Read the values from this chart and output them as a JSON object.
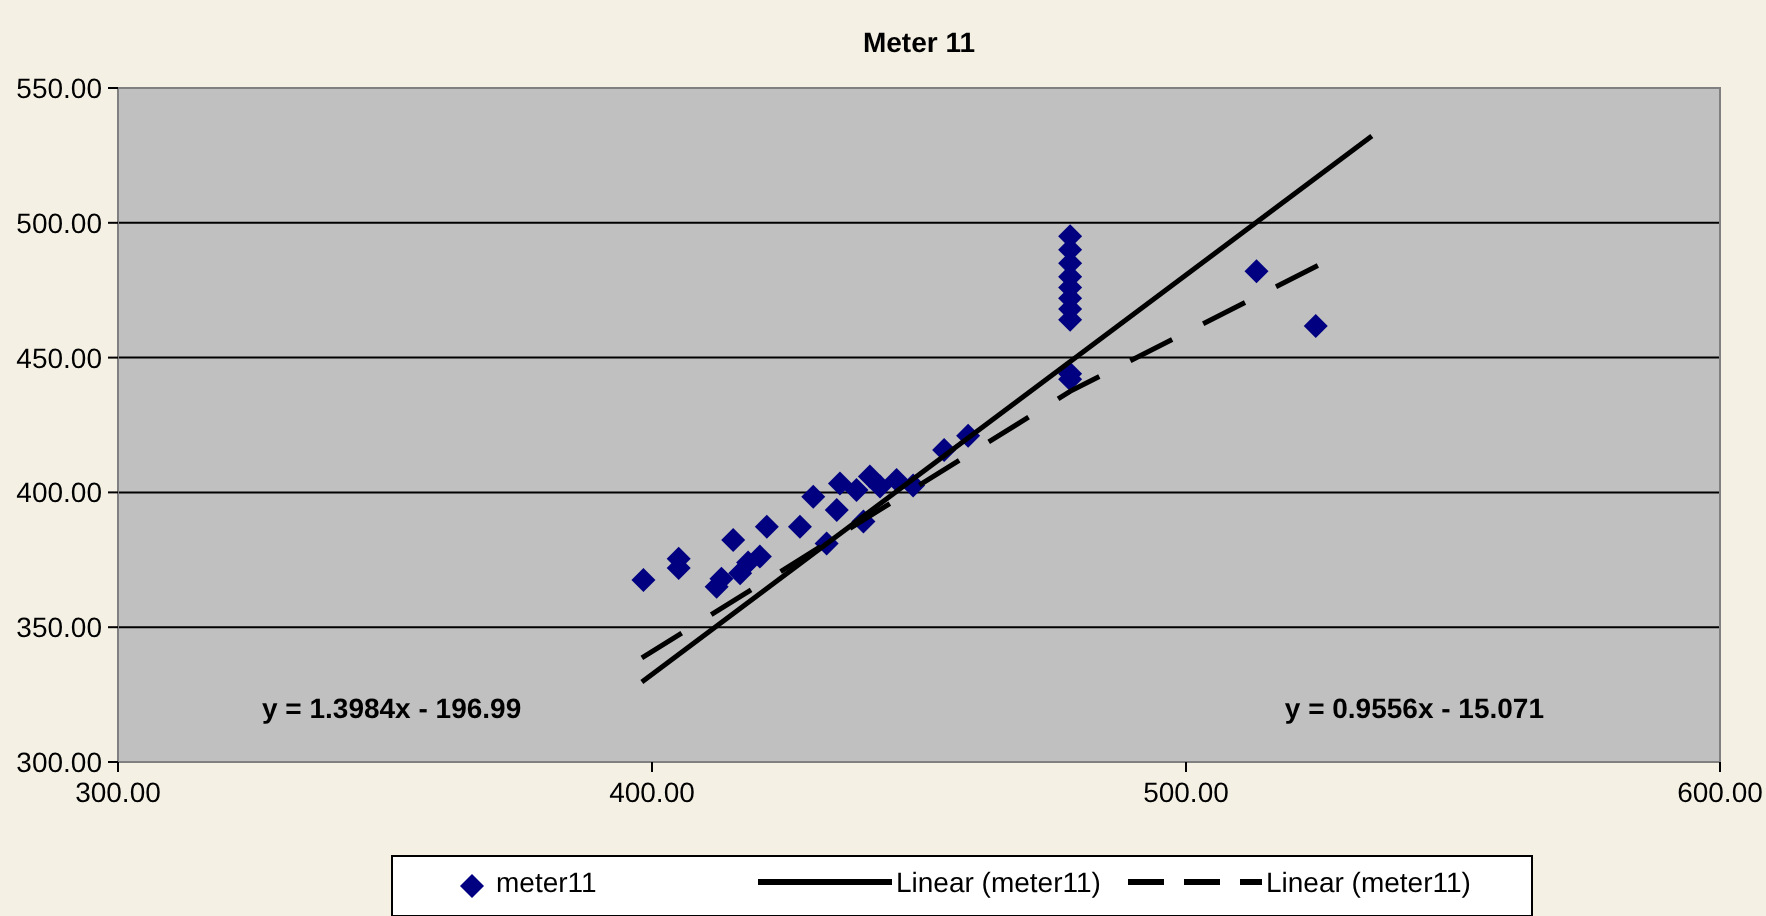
{
  "chart_data": {
    "type": "scatter",
    "title": "Meter 11",
    "xlim": [
      300,
      600
    ],
    "ylim": [
      300,
      550
    ],
    "xticks": [
      {
        "value": 300,
        "label": "300.00"
      },
      {
        "value": 400,
        "label": "400.00"
      },
      {
        "value": 500,
        "label": "500.00"
      },
      {
        "value": 600,
        "label": "600.00"
      }
    ],
    "yticks": [
      {
        "value": 300,
        "label": "300.00"
      },
      {
        "value": 350,
        "label": "350.00"
      },
      {
        "value": 400,
        "label": "400.00"
      },
      {
        "value": 450,
        "label": "450.00"
      },
      {
        "value": 500,
        "label": "500.00"
      },
      {
        "value": 550,
        "label": "550.00"
      }
    ],
    "grid": "y",
    "legend": "bottom",
    "annotations": [
      "y = 1.3984x - 196.99",
      "y = 0.9556x - 15.071"
    ],
    "series": [
      {
        "name": "meter11",
        "marker": "diamond",
        "color": "#000080",
        "x": [
          398.4,
          405,
          405,
          412.1,
          413,
          415.2,
          416.5,
          418,
          420.2,
          421.5,
          427.7,
          430.2,
          432.7,
          434.6,
          435.2,
          438.3,
          439.6,
          440.8,
          442.7,
          445.8,
          448.9,
          454.7,
          459.2,
          478.3,
          478.3,
          478.3,
          478.3,
          478.3,
          478.3,
          478.3,
          478.3,
          478.3,
          478.3,
          513.2,
          524.3
        ],
        "values": [
          367.5,
          375.4,
          372,
          365,
          368,
          382.3,
          370,
          374,
          376.2,
          387.3,
          387.3,
          398.4,
          381,
          393.5,
          403.3,
          400.9,
          389.2,
          405.9,
          402.2,
          404.6,
          402.6,
          415.7,
          421,
          495,
          490,
          485,
          480,
          476,
          472,
          468,
          464,
          444,
          442,
          482,
          461.7
        ]
      },
      {
        "name": "Linear (meter11)",
        "type": "line",
        "line_style": "solid",
        "color": "#000000",
        "x": [
          398.1,
          534.8
        ],
        "values": [
          329.7,
          532.2
        ]
      },
      {
        "name": "Linear (meter11)",
        "type": "line",
        "line_style": "dashed",
        "color": "#000000",
        "x": [
          398.1,
          478.3,
          524.7
        ],
        "values": [
          338.6,
          437.5,
          484.2
        ]
      }
    ]
  }
}
